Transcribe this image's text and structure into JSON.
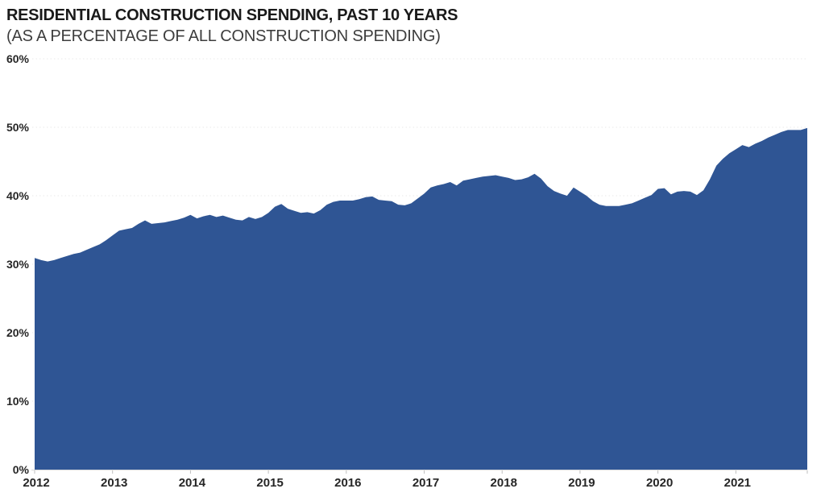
{
  "header": {
    "title": "RESIDENTIAL CONSTRUCTION SPENDING, PAST 10 YEARS",
    "subtitle": "(AS A PERCENTAGE OF ALL CONSTRUCTION SPENDING)"
  },
  "chart_data": {
    "type": "area",
    "title": "RESIDENTIAL CONSTRUCTION SPENDING, PAST 10 YEARS",
    "subtitle": "(AS A PERCENTAGE OF ALL CONSTRUCTION SPENDING)",
    "xlabel": "",
    "ylabel": "",
    "ylim": [
      0,
      60
    ],
    "y_tick_labels": [
      "0%",
      "10%",
      "20%",
      "30%",
      "40%",
      "50%",
      "60%"
    ],
    "x_tick_labels": [
      "2012",
      "2013",
      "2014",
      "2015",
      "2016",
      "2017",
      "2018",
      "2019",
      "2020",
      "2021"
    ],
    "grid": "horizontal-dotted",
    "legend": "none",
    "series": [
      {
        "name": "Residential construction spending as % of all construction spending",
        "frequency": "monthly",
        "start": "2012-01",
        "end": "2021-12",
        "values_pct": [
          30.9,
          30.6,
          30.4,
          30.6,
          30.9,
          31.2,
          31.5,
          31.7,
          32.1,
          32.5,
          32.9,
          33.5,
          34.2,
          34.9,
          35.1,
          35.3,
          35.9,
          36.4,
          35.9,
          36.0,
          36.1,
          36.3,
          36.5,
          36.8,
          37.2,
          36.7,
          37.0,
          37.2,
          36.9,
          37.1,
          36.8,
          36.5,
          36.4,
          36.9,
          36.6,
          36.9,
          37.5,
          38.4,
          38.8,
          38.1,
          37.8,
          37.5,
          37.6,
          37.4,
          37.9,
          38.7,
          39.1,
          39.3,
          39.3,
          39.3,
          39.5,
          39.8,
          39.9,
          39.4,
          39.3,
          39.2,
          38.7,
          38.6,
          38.9,
          39.6,
          40.3,
          41.2,
          41.5,
          41.7,
          42.0,
          41.5,
          42.2,
          42.4,
          42.6,
          42.8,
          42.9,
          43.0,
          42.8,
          42.6,
          42.3,
          42.4,
          42.7,
          43.2,
          42.5,
          41.4,
          40.7,
          40.3,
          40.0,
          41.2,
          40.6,
          40.0,
          39.2,
          38.7,
          38.5,
          38.5,
          38.5,
          38.7,
          38.9,
          39.3,
          39.7,
          40.1,
          41.0,
          41.1,
          40.2,
          40.6,
          40.7,
          40.6,
          40.1,
          40.8,
          42.4,
          44.4,
          45.4,
          46.2,
          46.8,
          47.4,
          47.1,
          47.6,
          48.0,
          48.5,
          48.9,
          49.3,
          49.6,
          49.6,
          49.6,
          49.9
        ]
      }
    ],
    "colors": {
      "area_fill": "#2F5594",
      "gridline": "#EAEAEA",
      "axis_line": "#D9D9D9",
      "tick": "#BFBFBF",
      "label": "#262626"
    }
  }
}
